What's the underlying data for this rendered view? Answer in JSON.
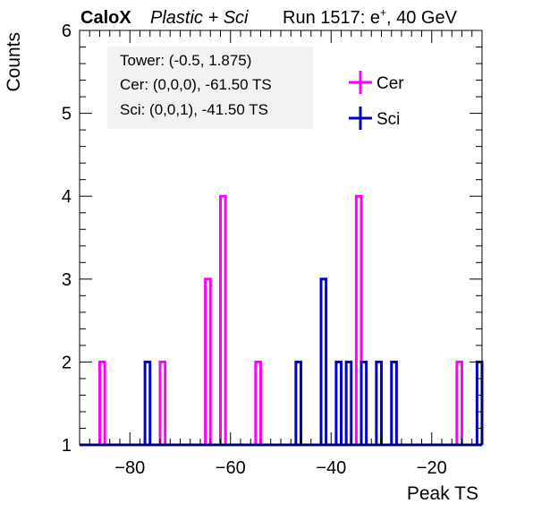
{
  "header": {
    "brand": "CaloX",
    "subtitle": "Plastic + Sci",
    "run": "Run 1517: e",
    "run_sup": "+",
    "run_tail": ", 40 GeV"
  },
  "info": {
    "tower": "Tower: (-0.5, 1.875)",
    "cer": "Cer: (0,0,0), -61.50 TS",
    "sci": "Sci: (0,0,1), -41.50 TS"
  },
  "chart_data": {
    "type": "histogram",
    "xlabel": "Peak TS",
    "ylabel": "Counts",
    "xlim": [
      -90,
      -10
    ],
    "ylim": [
      1,
      6
    ],
    "bin_width": 1,
    "baseline": 1,
    "x_ticks": [
      -80,
      -60,
      -40,
      -20
    ],
    "x_tick_labels": [
      "−80",
      "−60",
      "−40",
      "−20"
    ],
    "y_ticks": [
      1,
      2,
      3,
      4,
      5,
      6
    ],
    "y_tick_labels": [
      "1",
      "2",
      "3",
      "4",
      "5",
      "6"
    ],
    "legend_position": "top-right",
    "colors": {
      "Cer": "#ff00ff",
      "Sci": "#0000cc"
    },
    "series": [
      {
        "name": "Cer",
        "bins": [
          {
            "x0": -86,
            "count": 2
          },
          {
            "x0": -74,
            "count": 2
          },
          {
            "x0": -65,
            "count": 3
          },
          {
            "x0": -62,
            "count": 4
          },
          {
            "x0": -55,
            "count": 2
          },
          {
            "x0": -35,
            "count": 4
          },
          {
            "x0": -15,
            "count": 2
          }
        ]
      },
      {
        "name": "Sci",
        "bins": [
          {
            "x0": -77,
            "count": 2
          },
          {
            "x0": -47,
            "count": 2
          },
          {
            "x0": -42,
            "count": 3
          },
          {
            "x0": -39,
            "count": 2
          },
          {
            "x0": -37,
            "count": 2
          },
          {
            "x0": -34,
            "count": 2
          },
          {
            "x0": -31,
            "count": 2
          },
          {
            "x0": -28,
            "count": 2
          },
          {
            "x0": -11,
            "count": 2
          }
        ]
      }
    ]
  }
}
